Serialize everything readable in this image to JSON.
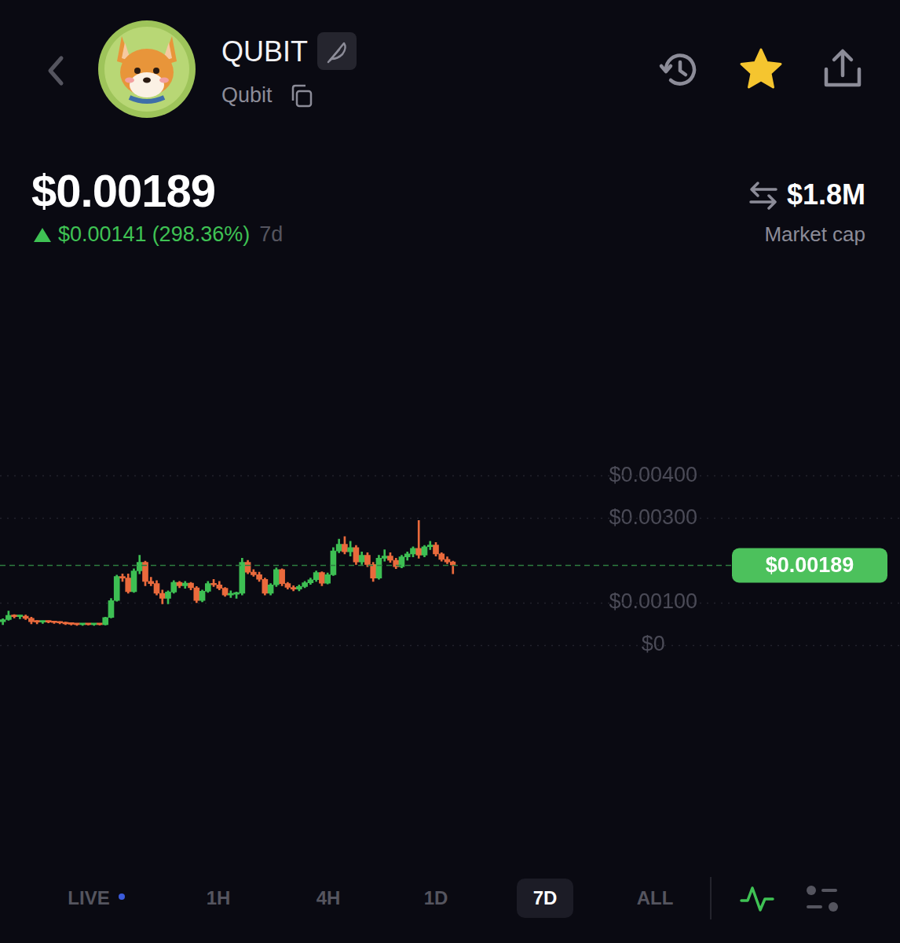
{
  "header": {
    "title": "QUBIT",
    "subtitle": "Qubit",
    "price": "$0.00189",
    "change": "$0.00141",
    "change_percent": "(298.36%)",
    "period": "7d",
    "market_cap": "$1.8M",
    "market_cap_label": "Market cap"
  },
  "chart_data": {
    "type": "candlestick",
    "open": [
      0.00055,
      0.0006,
      0.0007,
      0.00067,
      0.00068,
      0.00063,
      0.00055,
      0.00054,
      0.00055,
      0.00054,
      0.00053,
      0.00052,
      0.0005,
      0.00049,
      0.00048,
      0.0005,
      0.00048,
      0.00049,
      0.00048,
      0.00065,
      0.00105,
      0.00162,
      0.00158,
      0.00126,
      0.00175,
      0.00195,
      0.0015,
      0.00145,
      0.00122,
      0.0011,
      0.00125,
      0.00148,
      0.0014,
      0.00146,
      0.00135,
      0.00105,
      0.00127,
      0.00145,
      0.00142,
      0.00134,
      0.00118,
      0.0012,
      0.00122,
      0.00195,
      0.00172,
      0.00166,
      0.00155,
      0.00122,
      0.00142,
      0.00178,
      0.00145,
      0.00136,
      0.00132,
      0.00138,
      0.00147,
      0.00154,
      0.00171,
      0.00146,
      0.00166,
      0.00222,
      0.00238,
      0.0022,
      0.0023,
      0.00196,
      0.00212,
      0.0019,
      0.00158,
      0.00205,
      0.0021,
      0.002,
      0.00185,
      0.00208,
      0.00215,
      0.00228,
      0.00212,
      0.00232,
      0.00236,
      0.00215,
      0.00202,
      0.00196
    ],
    "high": [
      0.00062,
      0.0008,
      0.00072,
      0.0007,
      0.00071,
      0.00066,
      0.00058,
      0.00057,
      0.00057,
      0.00056,
      0.00055,
      0.00054,
      0.00052,
      0.00051,
      0.00051,
      0.00051,
      0.0005,
      0.00051,
      0.00066,
      0.0011,
      0.00165,
      0.00168,
      0.00168,
      0.0018,
      0.00212,
      0.00198,
      0.0016,
      0.00152,
      0.0013,
      0.00128,
      0.00152,
      0.0015,
      0.0015,
      0.00148,
      0.00138,
      0.0013,
      0.0015,
      0.00155,
      0.0015,
      0.00136,
      0.00128,
      0.00125,
      0.00205,
      0.002,
      0.00178,
      0.00172,
      0.00158,
      0.00145,
      0.00182,
      0.0018,
      0.00148,
      0.0014,
      0.00142,
      0.0015,
      0.00158,
      0.00175,
      0.00173,
      0.0017,
      0.0023,
      0.0025,
      0.00256,
      0.00245,
      0.00235,
      0.0022,
      0.00218,
      0.00195,
      0.00212,
      0.00225,
      0.00218,
      0.00205,
      0.00212,
      0.0022,
      0.00232,
      0.00294,
      0.00235,
      0.00245,
      0.00242,
      0.00218,
      0.00208,
      0.00198
    ],
    "low": [
      0.00048,
      0.00058,
      0.00064,
      0.00062,
      0.0006,
      0.0005,
      0.0005,
      0.00051,
      0.00052,
      0.00051,
      0.0005,
      0.00048,
      0.00047,
      0.00046,
      0.00046,
      0.00047,
      0.00046,
      0.00047,
      0.00047,
      0.00064,
      0.00103,
      0.0015,
      0.00122,
      0.00124,
      0.00168,
      0.0014,
      0.0014,
      0.00118,
      0.00097,
      0.00097,
      0.00122,
      0.00135,
      0.00134,
      0.0013,
      0.001,
      0.00102,
      0.00124,
      0.00138,
      0.0013,
      0.00115,
      0.00112,
      0.0011,
      0.00118,
      0.00168,
      0.00162,
      0.0015,
      0.00118,
      0.00118,
      0.00138,
      0.0014,
      0.00132,
      0.00128,
      0.00128,
      0.00135,
      0.00143,
      0.0015,
      0.0014,
      0.00144,
      0.00164,
      0.00218,
      0.00215,
      0.0021,
      0.0019,
      0.0019,
      0.00185,
      0.0015,
      0.00155,
      0.00198,
      0.00195,
      0.0018,
      0.00182,
      0.002,
      0.00208,
      0.00205,
      0.00208,
      0.00225,
      0.0021,
      0.00198,
      0.00192,
      0.00168
    ],
    "close": [
      0.0006,
      0.0007,
      0.00067,
      0.00068,
      0.00063,
      0.00055,
      0.00054,
      0.00055,
      0.00054,
      0.00053,
      0.00052,
      0.0005,
      0.00049,
      0.00048,
      0.0005,
      0.00048,
      0.00049,
      0.00048,
      0.00065,
      0.00105,
      0.00162,
      0.00158,
      0.00126,
      0.00175,
      0.00195,
      0.0015,
      0.00145,
      0.00122,
      0.0011,
      0.00125,
      0.00148,
      0.0014,
      0.00146,
      0.00135,
      0.00105,
      0.00127,
      0.00145,
      0.00142,
      0.00134,
      0.00118,
      0.0012,
      0.00122,
      0.00195,
      0.00172,
      0.00166,
      0.00155,
      0.00122,
      0.00142,
      0.00178,
      0.00145,
      0.00136,
      0.00132,
      0.00138,
      0.00147,
      0.00154,
      0.00171,
      0.00146,
      0.00166,
      0.00222,
      0.00238,
      0.0022,
      0.0023,
      0.00196,
      0.00212,
      0.0019,
      0.00158,
      0.00205,
      0.0021,
      0.002,
      0.00185,
      0.00208,
      0.00215,
      0.00228,
      0.00212,
      0.00232,
      0.00236,
      0.00215,
      0.00202,
      0.00196,
      0.00189
    ],
    "ylim": [
      0,
      0.004
    ],
    "yticks": [
      {
        "value": 0,
        "label": "$0"
      },
      {
        "value": 0.001,
        "label": "$0.00100"
      },
      {
        "value": 0.003,
        "label": "$0.00300"
      },
      {
        "value": 0.004,
        "label": "$0.00400"
      }
    ],
    "grid": true,
    "tick_labels": "y",
    "price_line": {
      "value": 0.00189,
      "label": "$0.00189"
    }
  },
  "tabs": {
    "items": [
      "LIVE",
      "1H",
      "4H",
      "1D",
      "7D",
      "ALL"
    ],
    "selected": "7D"
  }
}
